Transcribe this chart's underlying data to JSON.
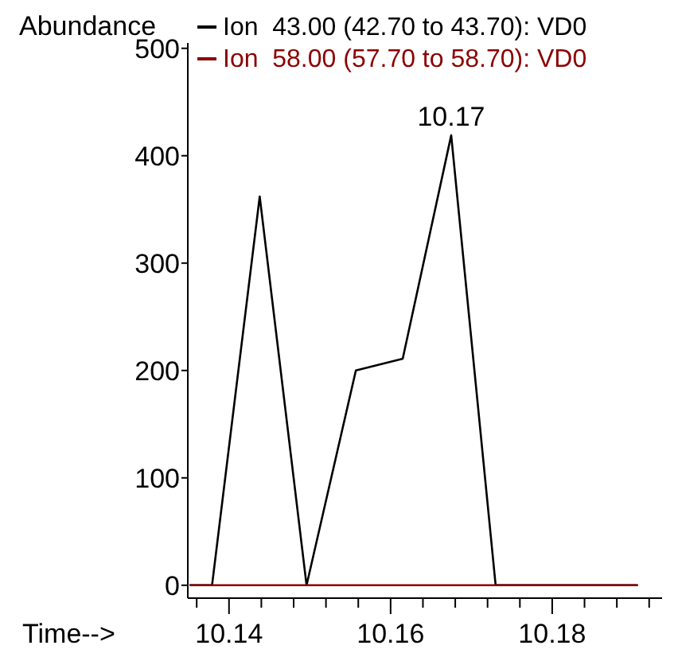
{
  "chart_data": {
    "type": "line",
    "ylabel": "Abundance",
    "xlabel": "Time-->",
    "xlim": [
      10.1349,
      10.1936
    ],
    "ylim": [
      -12,
      505
    ],
    "xticks": [
      {
        "value": 10.136,
        "label": null
      },
      10.14,
      {
        "value": 10.144,
        "label": null
      },
      {
        "value": 10.148,
        "label": null
      },
      {
        "value": 10.152,
        "label": null
      },
      {
        "value": 10.156,
        "label": null
      },
      10.16,
      {
        "value": 10.164,
        "label": null
      },
      {
        "value": 10.168,
        "label": null
      },
      {
        "value": 10.172,
        "label": null
      },
      {
        "value": 10.176,
        "label": null
      },
      10.18,
      {
        "value": 10.184,
        "label": null
      },
      {
        "value": 10.188,
        "label": null
      },
      {
        "value": 10.192,
        "label": null
      }
    ],
    "yticks": [
      0,
      100,
      200,
      300,
      400,
      500
    ],
    "series": [
      {
        "name": "Ion  43.00 (42.70 to 43.70): VD0",
        "color": "#000000",
        "x": [
          10.1351,
          10.1379,
          10.1438,
          10.1496,
          10.1557,
          10.1615,
          10.1675,
          10.173,
          10.1906
        ],
        "values": [
          0,
          0,
          362,
          0,
          200,
          211,
          419,
          0,
          0
        ]
      },
      {
        "name": "Ion  58.00 (57.70 to 58.70): VD0",
        "color": "#8b0000",
        "x": [
          10.1351,
          10.1906
        ],
        "values": [
          0,
          0
        ]
      }
    ],
    "annotations": [
      {
        "text": "10.17",
        "x": 10.1675,
        "y": 419
      }
    ],
    "legend": "top",
    "grid": false,
    "marker": "none",
    "line_style": "solid"
  }
}
